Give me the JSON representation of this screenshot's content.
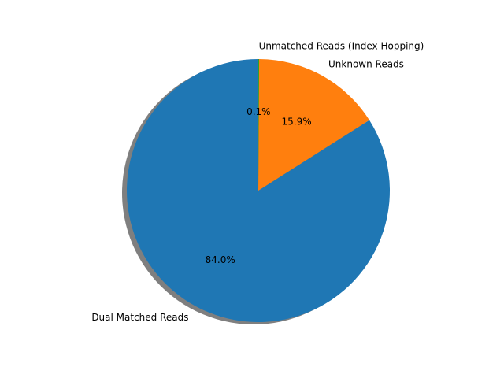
{
  "chart_data": {
    "type": "pie",
    "title": "",
    "labels": [
      "Dual Matched Reads",
      "Unknown Reads",
      "Unmatched Reads (Index Hopping)"
    ],
    "values": [
      84.0,
      15.9,
      0.1
    ],
    "percent_labels": [
      "84.0%",
      "15.9%",
      "0.1%"
    ],
    "colors": [
      "#1f77b4",
      "#ff7f0e",
      "#2ca02c"
    ],
    "start_angle_deg": 90,
    "direction": "counterclockwise",
    "shadow": true,
    "legend": "none"
  }
}
